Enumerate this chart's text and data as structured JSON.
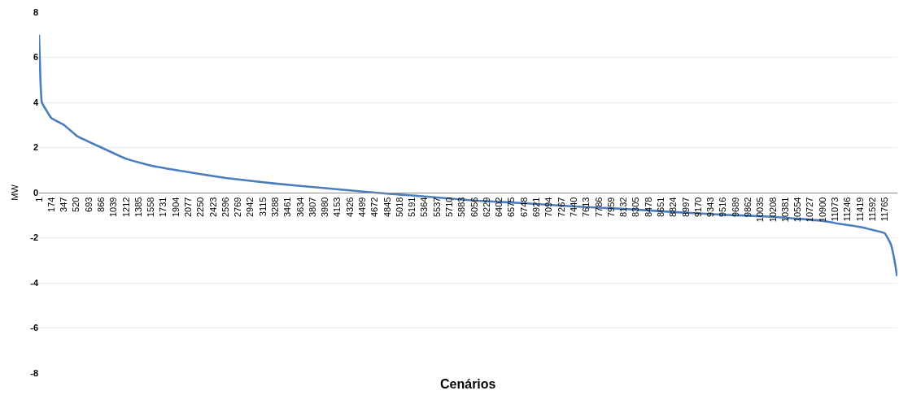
{
  "chart_data": {
    "type": "line",
    "xlabel": "Cenários",
    "ylabel": "MW",
    "x": [
      1,
      20,
      40,
      174,
      347,
      533,
      866,
      1212,
      1558,
      1904,
      2596,
      3288,
      3980,
      4672,
      5364,
      6056,
      6748,
      7440,
      8132,
      8824,
      9516,
      10208,
      10900,
      11073,
      11419,
      11592,
      11765,
      11850,
      11900,
      11935
    ],
    "series": [
      {
        "color": "#4a7ebf",
        "values": [
          7.0,
          5.0,
          4.0,
          3.3,
          3.0,
          2.5,
          2.0,
          1.5,
          1.2,
          1.0,
          0.65,
          0.4,
          0.2,
          0.0,
          -0.17,
          -0.35,
          -0.47,
          -0.61,
          -0.72,
          -0.86,
          -0.98,
          -1.07,
          -1.25,
          -1.35,
          -1.52,
          -1.65,
          -1.8,
          -2.3,
          -3.0,
          -3.7
        ]
      }
    ],
    "xlim": [
      1,
      11940
    ],
    "xticks": [
      1,
      174,
      347,
      520,
      693,
      866,
      1039,
      1212,
      1385,
      1558,
      1731,
      1904,
      2077,
      2250,
      2423,
      2596,
      2769,
      2942,
      3115,
      3288,
      3461,
      3634,
      3807,
      3980,
      4153,
      4326,
      4499,
      4672,
      4845,
      5018,
      5191,
      5364,
      5537,
      5710,
      5883,
      6056,
      6229,
      6402,
      6575,
      6748,
      6921,
      7094,
      7267,
      7440,
      7613,
      7786,
      7959,
      8132,
      8305,
      8478,
      8651,
      8824,
      8997,
      9170,
      9343,
      9516,
      9689,
      9862,
      10035,
      10208,
      10381,
      10554,
      10727,
      10900,
      11073,
      11246,
      11419,
      11592,
      11765
    ],
    "ylim": [
      -8,
      8
    ],
    "yticks": [
      -8,
      -6,
      -4,
      -2,
      0,
      2,
      4,
      6,
      8
    ],
    "grid": "y",
    "marker": "none",
    "line_style": "solid"
  }
}
